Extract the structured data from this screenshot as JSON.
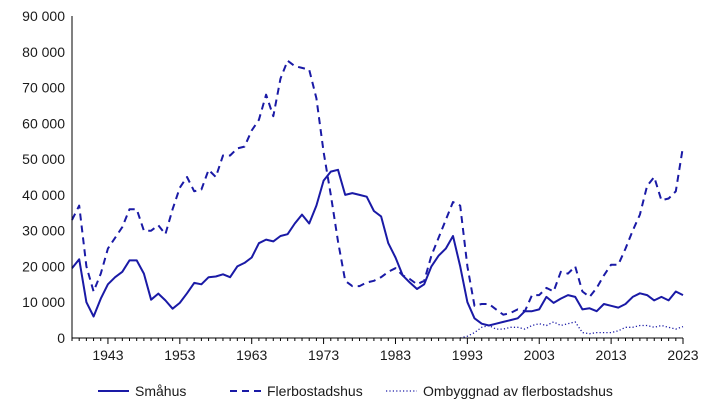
{
  "chart_data": {
    "type": "line",
    "title": "",
    "xlabel": "",
    "ylabel": "",
    "xlim": [
      1938,
      2023
    ],
    "ylim": [
      0,
      90000
    ],
    "grid": false,
    "legend_position": "bottom",
    "y_ticks": [
      0,
      10000,
      20000,
      30000,
      40000,
      50000,
      60000,
      70000,
      80000,
      90000
    ],
    "y_tick_labels": [
      "0",
      "10 000",
      "20 000",
      "30 000",
      "40 000",
      "50 000",
      "60 000",
      "70 000",
      "80 000",
      "90 000"
    ],
    "x_ticks": [
      1943,
      1953,
      1963,
      1973,
      1983,
      1993,
      2003,
      2013,
      2023
    ],
    "x_tick_labels": [
      "1943",
      "1953",
      "1963",
      "1973",
      "1983",
      "1993",
      "2003",
      "2013",
      "2023"
    ],
    "colors": {
      "series": "#1a1aa6",
      "axis": "#000000"
    },
    "series": [
      {
        "name": "Småhus",
        "style": "solid",
        "x": [
          1938,
          1939,
          1940,
          1941,
          1942,
          1943,
          1944,
          1945,
          1946,
          1947,
          1948,
          1949,
          1950,
          1951,
          1952,
          1953,
          1954,
          1955,
          1956,
          1957,
          1958,
          1959,
          1960,
          1961,
          1962,
          1963,
          1964,
          1965,
          1966,
          1967,
          1968,
          1969,
          1970,
          1971,
          1972,
          1973,
          1974,
          1975,
          1976,
          1977,
          1978,
          1979,
          1980,
          1981,
          1982,
          1983,
          1984,
          1985,
          1986,
          1987,
          1988,
          1989,
          1990,
          1991,
          1992,
          1993,
          1994,
          1995,
          1996,
          1997,
          1998,
          1999,
          2000,
          2001,
          2002,
          2003,
          2004,
          2005,
          2006,
          2007,
          2008,
          2009,
          2010,
          2011,
          2012,
          2013,
          2014,
          2015,
          2016,
          2017,
          2018,
          2019,
          2020,
          2021,
          2022,
          2023
        ],
        "values": [
          19500,
          22000,
          10000,
          6000,
          11000,
          15000,
          17000,
          18500,
          21700,
          21700,
          18000,
          10700,
          12400,
          10500,
          8200,
          9800,
          12500,
          15400,
          15000,
          17000,
          17200,
          17800,
          17000,
          20000,
          21000,
          22500,
          26500,
          27500,
          27000,
          28500,
          29000,
          32000,
          34500,
          32000,
          37000,
          44000,
          46500,
          47000,
          40000,
          40500,
          40000,
          39500,
          35500,
          34000,
          26500,
          22500,
          17500,
          15500,
          13700,
          15000,
          20000,
          23000,
          25000,
          28500,
          20000,
          10000,
          5500,
          4000,
          3500,
          4000,
          4500,
          5000,
          5500,
          7500,
          7500,
          8000,
          11500,
          9800,
          11000,
          12000,
          11500,
          8000,
          8300,
          7500,
          9500,
          9000,
          8500,
          9500,
          11500,
          12500,
          12000,
          10500,
          11500,
          10500,
          13000,
          12000
        ]
      },
      {
        "name": "Flerbostadshus",
        "style": "dashed",
        "x": [
          1938,
          1939,
          1940,
          1941,
          1942,
          1943,
          1944,
          1945,
          1946,
          1947,
          1948,
          1949,
          1950,
          1951,
          1952,
          1953,
          1954,
          1955,
          1956,
          1957,
          1958,
          1959,
          1960,
          1961,
          1962,
          1963,
          1964,
          1965,
          1966,
          1967,
          1968,
          1969,
          1970,
          1971,
          1972,
          1973,
          1974,
          1975,
          1976,
          1977,
          1978,
          1979,
          1980,
          1981,
          1982,
          1983,
          1984,
          1985,
          1986,
          1987,
          1988,
          1989,
          1990,
          1991,
          1992,
          1993,
          1994,
          1995,
          1996,
          1997,
          1998,
          1999,
          2000,
          2001,
          2002,
          2003,
          2004,
          2005,
          2006,
          2007,
          2008,
          2009,
          2010,
          2011,
          2012,
          2013,
          2014,
          2015,
          2016,
          2017,
          2018,
          2019,
          2020,
          2021,
          2022,
          2023
        ],
        "values": [
          33000,
          37000,
          20000,
          13000,
          18000,
          25000,
          28000,
          31000,
          36000,
          36000,
          30000,
          30000,
          31500,
          29000,
          36000,
          42000,
          45000,
          41000,
          41500,
          47000,
          45000,
          51000,
          51000,
          53000,
          53500,
          58000,
          61000,
          68000,
          62000,
          72500,
          77500,
          76000,
          75500,
          75000,
          67000,
          52000,
          40000,
          27000,
          16000,
          14500,
          14500,
          15500,
          16000,
          17000,
          18500,
          19500,
          17500,
          16500,
          15000,
          16000,
          23000,
          28000,
          33000,
          38000,
          37000,
          20000,
          9000,
          9500,
          9500,
          8000,
          6500,
          7000,
          8000,
          7500,
          12000,
          12000,
          14000,
          13000,
          18500,
          18000,
          20000,
          13000,
          11500,
          14000,
          17500,
          20500,
          20500,
          25000,
          30000,
          34500,
          42500,
          45000,
          38500,
          39000,
          41000,
          53500
        ]
      },
      {
        "name": "Ombyggnad av flerbostadshus",
        "style": "dotted",
        "x": [
          1992,
          1993,
          1994,
          1995,
          1996,
          1997,
          1998,
          1999,
          2000,
          2001,
          2002,
          2003,
          2004,
          2005,
          2006,
          2007,
          2008,
          2009,
          2010,
          2011,
          2012,
          2013,
          2014,
          2015,
          2016,
          2017,
          2018,
          2019,
          2020,
          2021,
          2022,
          2023
        ],
        "values": [
          0,
          500,
          1500,
          3000,
          3500,
          2500,
          2500,
          3000,
          3000,
          2500,
          3500,
          4000,
          3500,
          4500,
          3500,
          4000,
          4500,
          1500,
          1200,
          1500,
          1500,
          1500,
          2000,
          3000,
          3000,
          3500,
          3500,
          3000,
          3500,
          3000,
          2500,
          3200
        ]
      }
    ]
  }
}
